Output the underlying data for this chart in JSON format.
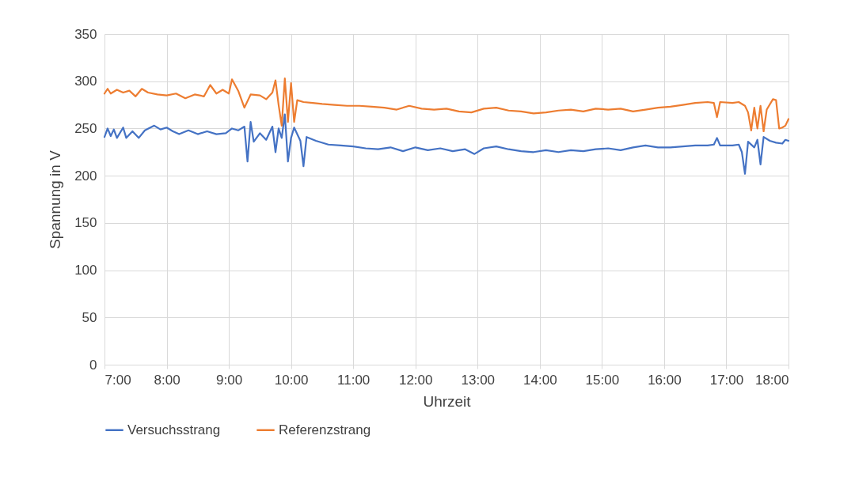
{
  "chart_data": {
    "type": "line",
    "xlabel": "Uhrzeit",
    "ylabel": "Spannung  in V",
    "xlim": [
      7,
      18
    ],
    "xticks": [
      {
        "value": 7,
        "label": "7:00"
      },
      {
        "value": 8,
        "label": "8:00"
      },
      {
        "value": 9,
        "label": "9:00"
      },
      {
        "value": 10,
        "label": "10:00"
      },
      {
        "value": 11,
        "label": "11:00"
      },
      {
        "value": 12,
        "label": "12:00"
      },
      {
        "value": 13,
        "label": "13:00"
      },
      {
        "value": 14,
        "label": "14:00"
      },
      {
        "value": 15,
        "label": "15:00"
      },
      {
        "value": 16,
        "label": "16:00"
      },
      {
        "value": 17,
        "label": "17:00"
      },
      {
        "value": 18,
        "label": "18:00"
      }
    ],
    "ylim": [
      0,
      350
    ],
    "yticks": [
      0,
      50,
      100,
      150,
      200,
      250,
      300,
      350
    ],
    "grid": true,
    "legend": "bottom",
    "line_style": "solid",
    "marker": "none",
    "series": [
      {
        "name": "Versuchsstrang",
        "color": "#4472c4",
        "x": [
          7.0,
          7.05,
          7.1,
          7.15,
          7.2,
          7.3,
          7.35,
          7.45,
          7.55,
          7.65,
          7.8,
          7.9,
          8.0,
          8.1,
          8.2,
          8.35,
          8.5,
          8.65,
          8.8,
          8.95,
          9.05,
          9.15,
          9.25,
          9.3,
          9.35,
          9.4,
          9.5,
          9.6,
          9.7,
          9.75,
          9.8,
          9.85,
          9.9,
          9.95,
          10.0,
          10.05,
          10.15,
          10.2,
          10.25,
          10.4,
          10.6,
          10.8,
          11.0,
          11.2,
          11.4,
          11.6,
          11.8,
          12.0,
          12.2,
          12.4,
          12.6,
          12.8,
          12.95,
          13.1,
          13.3,
          13.5,
          13.7,
          13.9,
          14.1,
          14.3,
          14.5,
          14.7,
          14.9,
          15.1,
          15.3,
          15.5,
          15.7,
          15.9,
          16.1,
          16.3,
          16.5,
          16.7,
          16.8,
          16.85,
          16.9,
          17.1,
          17.2,
          17.25,
          17.3,
          17.35,
          17.45,
          17.5,
          17.55,
          17.6,
          17.7,
          17.8,
          17.9,
          17.95,
          18.0
        ],
        "values": [
          241,
          250,
          242,
          249,
          240,
          251,
          240,
          247,
          240,
          248,
          253,
          249,
          251,
          247,
          244,
          248,
          244,
          247,
          244,
          245,
          250,
          248,
          252,
          215,
          257,
          236,
          245,
          238,
          252,
          225,
          250,
          240,
          265,
          215,
          240,
          251,
          237,
          210,
          241,
          237,
          233,
          232,
          231,
          229,
          228,
          230,
          226,
          230,
          227,
          229,
          226,
          228,
          223,
          229,
          231,
          228,
          226,
          225,
          227,
          225,
          227,
          226,
          228,
          229,
          227,
          230,
          232,
          230,
          230,
          231,
          232,
          232,
          233,
          240,
          232,
          232,
          233,
          225,
          202,
          236,
          230,
          238,
          212,
          241,
          237,
          235,
          234,
          238,
          237
        ]
      },
      {
        "name": "Referenzstrang",
        "color": "#ed7d31",
        "x": [
          7.0,
          7.05,
          7.1,
          7.2,
          7.3,
          7.4,
          7.5,
          7.6,
          7.7,
          7.85,
          8.0,
          8.15,
          8.3,
          8.45,
          8.6,
          8.7,
          8.8,
          8.9,
          9.0,
          9.05,
          9.15,
          9.25,
          9.35,
          9.5,
          9.6,
          9.7,
          9.75,
          9.8,
          9.85,
          9.9,
          9.95,
          10.0,
          10.05,
          10.1,
          10.2,
          10.35,
          10.5,
          10.7,
          10.9,
          11.1,
          11.3,
          11.5,
          11.7,
          11.9,
          12.1,
          12.3,
          12.5,
          12.7,
          12.9,
          13.1,
          13.3,
          13.5,
          13.7,
          13.9,
          14.1,
          14.3,
          14.5,
          14.7,
          14.9,
          15.1,
          15.3,
          15.5,
          15.7,
          15.9,
          16.1,
          16.3,
          16.5,
          16.7,
          16.8,
          16.85,
          16.9,
          17.1,
          17.2,
          17.3,
          17.35,
          17.4,
          17.45,
          17.5,
          17.55,
          17.6,
          17.65,
          17.75,
          17.8,
          17.85,
          17.9,
          17.95,
          18.0
        ],
        "values": [
          287,
          292,
          287,
          291,
          288,
          290,
          284,
          292,
          288,
          286,
          285,
          287,
          282,
          286,
          284,
          296,
          287,
          291,
          287,
          302,
          290,
          272,
          286,
          285,
          281,
          288,
          301,
          275,
          253,
          303,
          257,
          298,
          257,
          280,
          278,
          277,
          276,
          275,
          274,
          274,
          273,
          272,
          270,
          274,
          271,
          270,
          271,
          268,
          267,
          271,
          272,
          269,
          268,
          266,
          267,
          269,
          270,
          268,
          271,
          270,
          271,
          268,
          270,
          272,
          273,
          275,
          277,
          278,
          277,
          262,
          278,
          277,
          278,
          274,
          267,
          248,
          272,
          250,
          274,
          247,
          270,
          281,
          280,
          250,
          251,
          253,
          260
        ]
      }
    ]
  }
}
